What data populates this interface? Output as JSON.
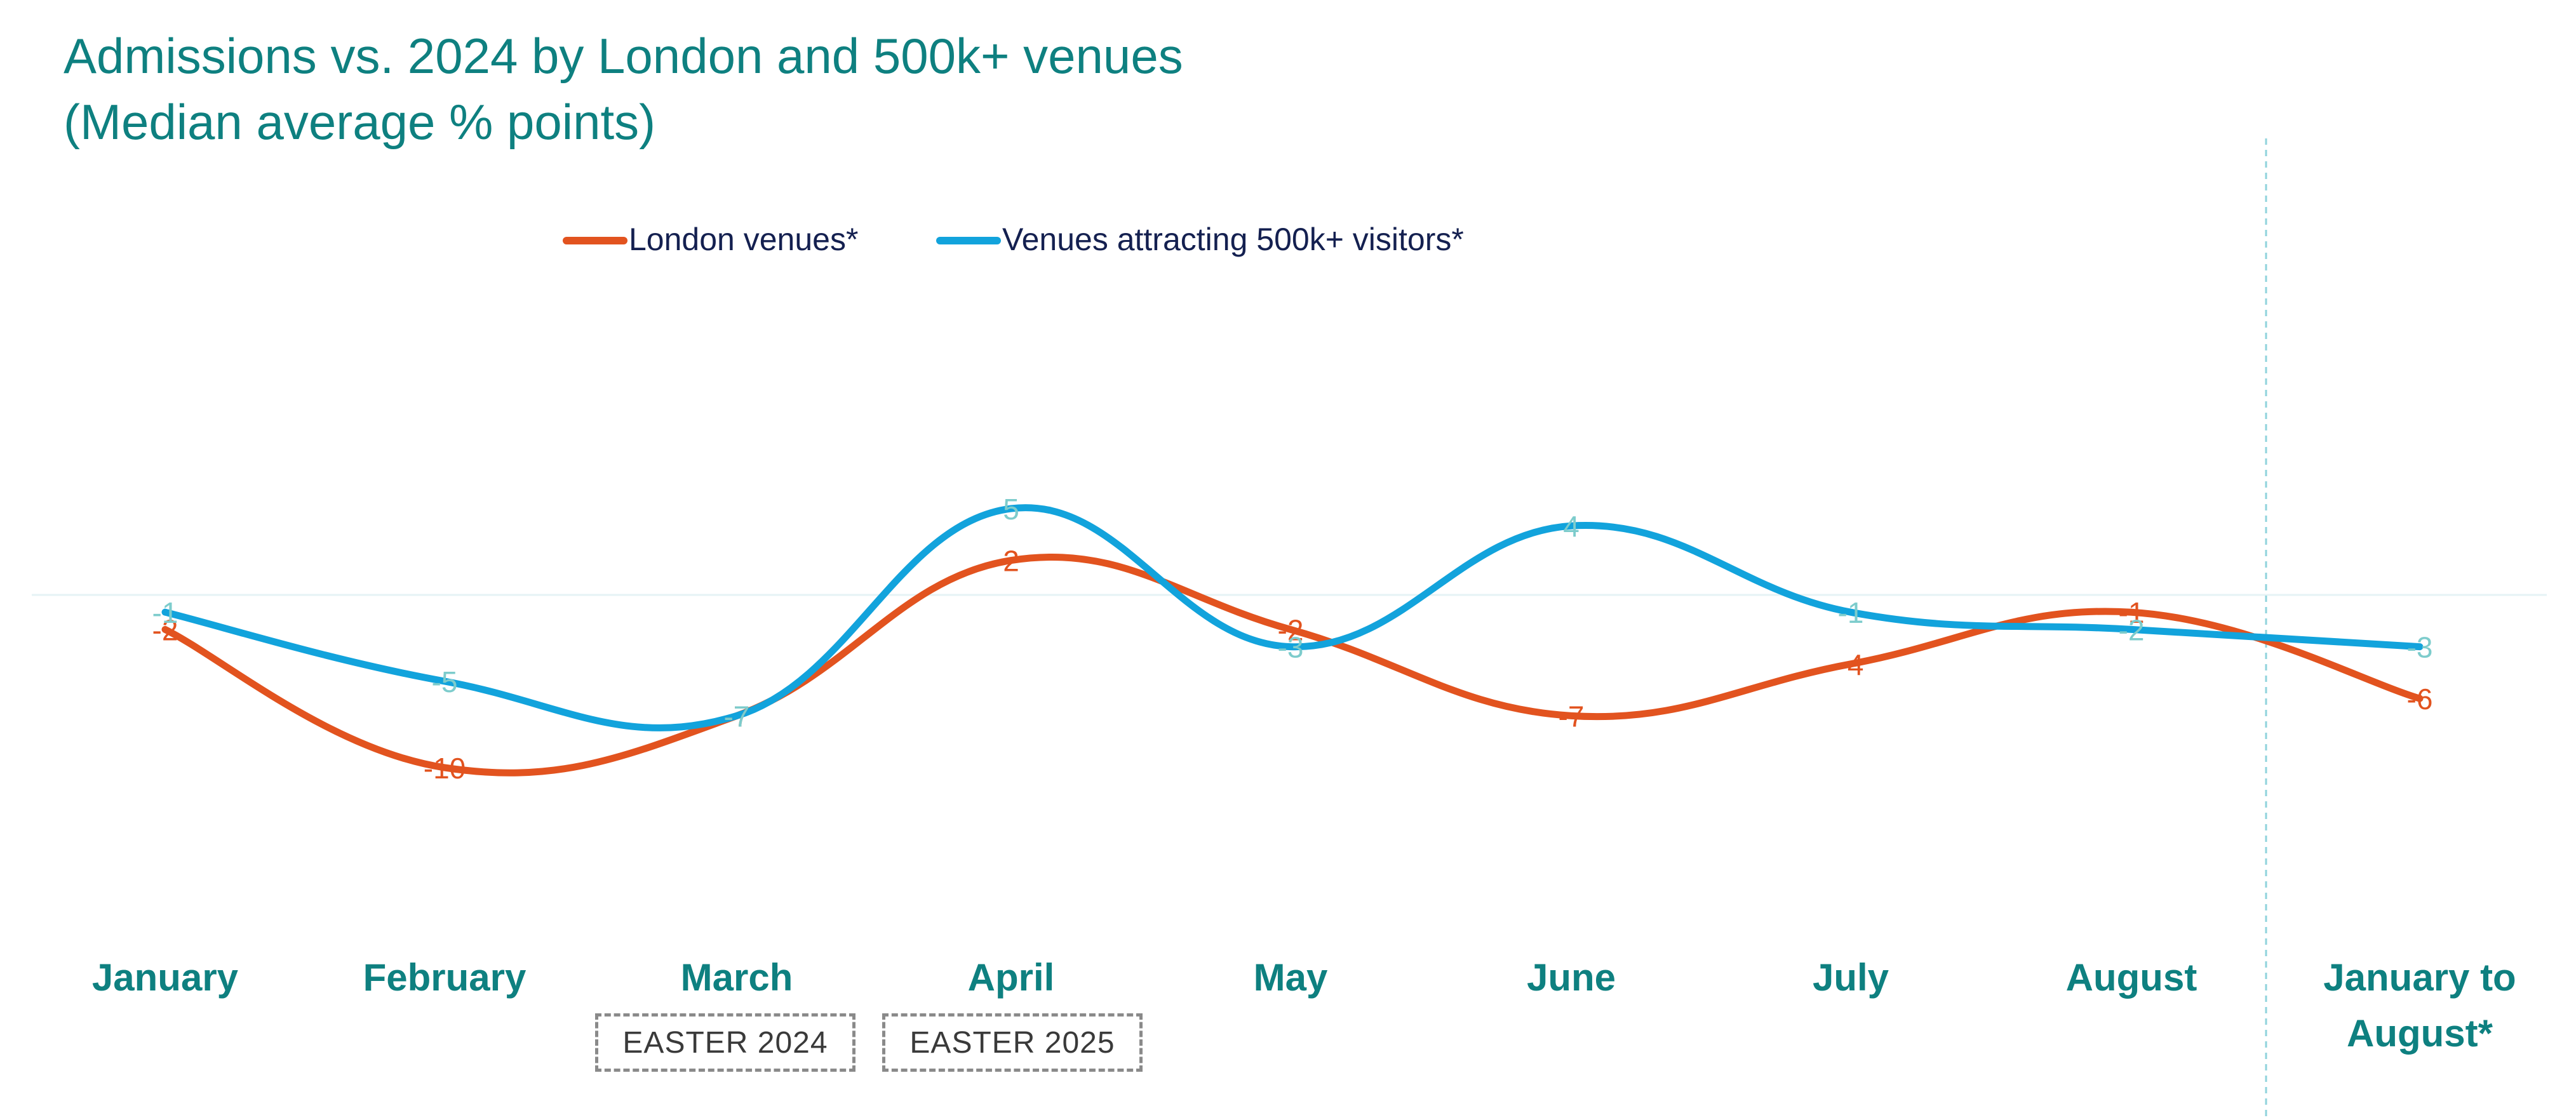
{
  "title": {
    "line1": "Admissions vs. 2024 by London and 500k+ venues",
    "line2": "(Median average % points)"
  },
  "chart_data": {
    "type": "line",
    "categories": [
      "January",
      "February",
      "March",
      "April",
      "May",
      "June",
      "July",
      "August",
      "January to August*"
    ],
    "series": [
      {
        "name": "London venues*",
        "color": "#e2531f",
        "values": [
          -2,
          -10,
          -7,
          2,
          -2,
          -7,
          -4,
          -1,
          -6
        ]
      },
      {
        "name": "Venues attracting 500k+ visitors*",
        "color": "#12a3dc",
        "values": [
          -1,
          -5,
          -7,
          5,
          -3,
          4,
          -1,
          -2,
          -3
        ]
      }
    ],
    "ylim": [
      -14,
      8
    ],
    "xlabel": "",
    "ylabel": "",
    "legend_position": "top",
    "annotations": [
      {
        "text": "EASTER 2024",
        "category": "March"
      },
      {
        "text": "EASTER 2025",
        "category": "April"
      }
    ],
    "colors": {
      "title": "#0e8080",
      "axis_label": "#0e8080",
      "legend_text": "#142050",
      "zero_line": "#e6f3f5",
      "divider": "#8fd3dc",
      "label_blue": "#7dcccc"
    }
  }
}
